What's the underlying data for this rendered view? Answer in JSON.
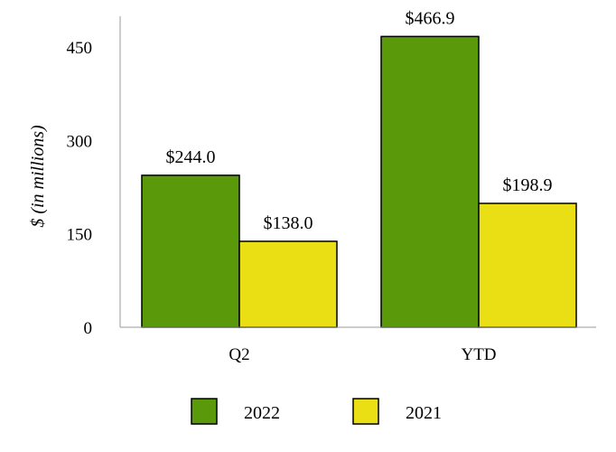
{
  "chart_data": {
    "type": "bar",
    "categories": [
      "Q2",
      "YTD"
    ],
    "series": [
      {
        "name": "2022",
        "values": [
          244.0,
          466.9
        ],
        "color": "#5a9a0a",
        "labels": [
          "$244.0",
          "$466.9"
        ]
      },
      {
        "name": "2021",
        "values": [
          138.0,
          198.9
        ],
        "color": "#eadf14",
        "labels": [
          "$138.0",
          "$198.9"
        ]
      }
    ],
    "ylabel": "$ (in millions)",
    "ylim": [
      0,
      450
    ],
    "yticks": [
      0,
      150,
      300,
      450
    ],
    "grid": false,
    "legend_position": "bottom",
    "bar_border_color": "#000000"
  }
}
